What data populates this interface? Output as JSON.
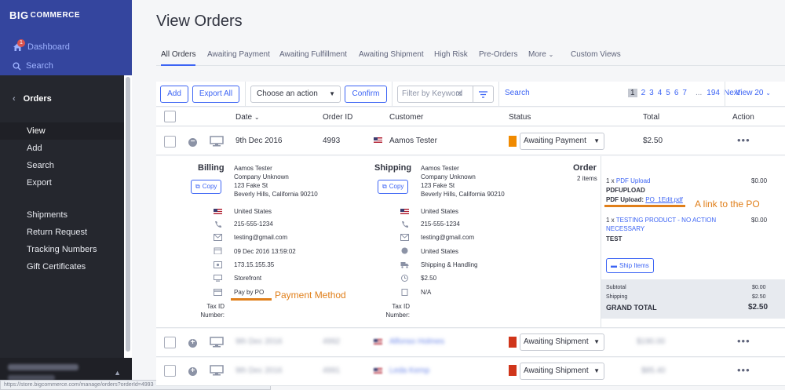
{
  "sidebar": {
    "brand": "BIGCOMMERCE",
    "brand_big": "BIG",
    "brand_rest": "COMMERCE",
    "badge": "1",
    "dashboard": "Dashboard",
    "search": "Search",
    "section": "Orders",
    "items": [
      {
        "label": "View"
      },
      {
        "label": "Add"
      },
      {
        "label": "Search"
      },
      {
        "label": "Export"
      },
      {
        "label": "Shipments"
      },
      {
        "label": "Return Request"
      },
      {
        "label": "Tracking Numbers"
      },
      {
        "label": "Gift Certificates"
      }
    ]
  },
  "page_title": "View Orders",
  "tabs": [
    {
      "label": "All Orders"
    },
    {
      "label": "Awaiting Payment"
    },
    {
      "label": "Awaiting Fulfillment"
    },
    {
      "label": "Awaiting Shipment"
    },
    {
      "label": "High Risk"
    },
    {
      "label": "Pre-Orders"
    },
    {
      "label": "More"
    },
    {
      "label": "Custom Views"
    }
  ],
  "toolbar": {
    "add": "Add",
    "export_all": "Export All",
    "action_select": "Choose an action",
    "confirm": "Confirm",
    "filter_placeholder": "Filter by Keyword",
    "search": "Search",
    "view": "View 20"
  },
  "pager": {
    "current": "1",
    "pages": [
      "2",
      "3",
      "4",
      "5",
      "6",
      "7"
    ],
    "ellipsis": "...",
    "last": "194",
    "next": "Next"
  },
  "table": {
    "headers": {
      "date": "Date",
      "order_id": "Order ID",
      "customer": "Customer",
      "status": "Status",
      "total": "Total",
      "action": "Action"
    },
    "rows": [
      {
        "date": "9th Dec 2016",
        "order_id": "4993",
        "customer": "Aamos Tester",
        "status": "Awaiting Payment",
        "total": "$2.50",
        "status_color": "#f08a00"
      },
      {
        "date": "9th Dec 2016",
        "order_id": "4992",
        "customer": "Alfonso Holmes",
        "status": "Awaiting Shipment",
        "total": "$190.00",
        "status_color": "#d0351a"
      },
      {
        "date": "9th Dec 2016",
        "order_id": "4991",
        "customer": "Leda Kemp",
        "status": "Awaiting Shipment",
        "total": "$85.40",
        "status_color": "#d0351a"
      }
    ]
  },
  "details": {
    "billing": {
      "title": "Billing",
      "copy": "Copy",
      "address": [
        "Aamos Tester",
        "Company Unknown",
        "123 Fake St",
        "Beverly Hills, California 90210"
      ],
      "country": "United States",
      "phone": "215-555-1234",
      "email": "testing@gmail.com",
      "date": "09 Dec 2016 13:59:02",
      "ip": "173.15.155.35",
      "channel": "Storefront",
      "payment": "Pay by PO",
      "tax_label_1": "Tax ID",
      "tax_label_2": "Number:"
    },
    "shipping": {
      "title": "Shipping",
      "copy": "Copy",
      "address": [
        "Aamos Tester",
        "Company Unknown",
        "123 Fake St",
        "Beverly Hills, California 90210"
      ],
      "country": "United States",
      "phone": "215-555-1234",
      "email": "testing@gmail.com",
      "ship_country": "United States",
      "method": "Shipping & Handling",
      "cost": "$2.50",
      "na": "N/A",
      "tax_label_1": "Tax ID",
      "tax_label_2": "Number:"
    },
    "order": {
      "title": "Order",
      "count": "2 items",
      "item1_qty": "1 x",
      "item1_name": "PDF Upload",
      "item1_price": "$0.00",
      "item1_sku": "PDFUPLOAD",
      "item1_field": "PDF Upload:",
      "item1_file": "PO_1Edit.pdf",
      "item2_qty": "1 x",
      "item2_name_1": "TESTING PRODUCT - NO ACTION",
      "item2_name_2": "NECESSARY",
      "item2_price": "$0.00",
      "item2_sku": "TEST",
      "ship_items": "Ship Items",
      "subtotal_label": "Subtotal",
      "subtotal": "$0.00",
      "shipping_label": "Shipping",
      "shipping": "$2.50",
      "grand_label": "GRAND TOTAL",
      "grand": "$2.50"
    }
  },
  "annotations": {
    "payment": "Payment Method",
    "po_link": "A link to the PO",
    "color": "#e07f1a"
  },
  "statusbar": "https://store.bigcommerce.com/manage/orders?orderId=4993"
}
